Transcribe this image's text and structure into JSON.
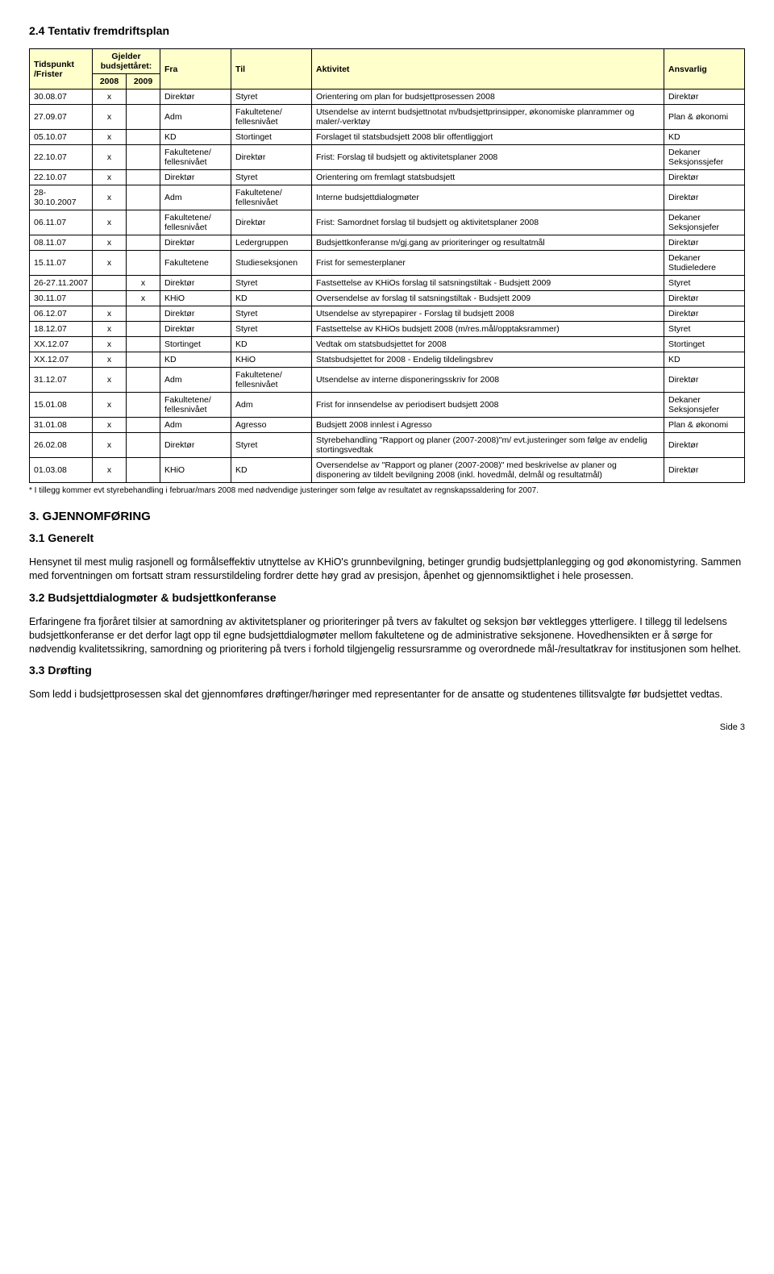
{
  "section24": {
    "title": "2.4 Tentativ fremdriftsplan",
    "headers": {
      "tidspunkt": "Tidspunkt /Frister",
      "gjelder": "Gjelder budsjettåret:",
      "y2008": "2008",
      "y2009": "2009",
      "fra": "Fra",
      "til": "Til",
      "aktivitet": "Aktivitet",
      "ansvarlig": "Ansvarlig"
    },
    "rows": [
      {
        "tid": "30.08.07",
        "y08": "x",
        "y09": "",
        "fra": "Direktør",
        "til": "Styret",
        "akt": "Orientering om plan for budsjettprosessen 2008",
        "ans": "Direktør"
      },
      {
        "tid": "27.09.07",
        "y08": "x",
        "y09": "",
        "fra": "Adm",
        "til": "Fakultetene/ fellesnivået",
        "akt": "Utsendelse av internt budsjettnotat m/budsjettprinsipper, økonomiske planrammer og maler/-verktøy",
        "ans": "Plan & økonomi"
      },
      {
        "tid": "05.10.07",
        "y08": "x",
        "y09": "",
        "fra": "KD",
        "til": "Stortinget",
        "akt": "Forslaget til statsbudsjett 2008 blir offentliggjort",
        "ans": "KD"
      },
      {
        "tid": "22.10.07",
        "y08": "x",
        "y09": "",
        "fra": "Fakultetene/ fellesnivået",
        "til": "Direktør",
        "akt": "Frist: Forslag til budsjett og aktivitetsplaner 2008",
        "ans": "Dekaner Seksjonssjefer"
      },
      {
        "tid": "22.10.07",
        "y08": "x",
        "y09": "",
        "fra": "Direktør",
        "til": "Styret",
        "akt": "Orientering om fremlagt statsbudsjett",
        "ans": "Direktør"
      },
      {
        "tid": "28-30.10.2007",
        "y08": "x",
        "y09": "",
        "fra": "Adm",
        "til": "Fakultetene/ fellesnivået",
        "akt": "Interne budsjettdialogmøter",
        "ans": "Direktør"
      },
      {
        "tid": "06.11.07",
        "y08": "x",
        "y09": "",
        "fra": "Fakultetene/ fellesnivået",
        "til": "Direktør",
        "akt": "Frist: Samordnet forslag til budsjett og aktivitetsplaner 2008",
        "ans": "Dekaner Seksjonsjefer"
      },
      {
        "tid": "08.11.07",
        "y08": "x",
        "y09": "",
        "fra": "Direktør",
        "til": "Ledergruppen",
        "akt": "Budsjettkonferanse m/gj.gang av prioriteringer og resultatmål",
        "ans": "Direktør"
      },
      {
        "tid": "15.11.07",
        "y08": "x",
        "y09": "",
        "fra": "Fakultetene",
        "til": "Studieseksjonen",
        "akt": "Frist for semesterplaner",
        "ans": "Dekaner Studieledere"
      },
      {
        "tid": "26-27.11.2007",
        "y08": "",
        "y09": "x",
        "fra": "Direktør",
        "til": "Styret",
        "akt": "Fastsettelse av KHiOs forslag til satsningstiltak - Budsjett 2009",
        "ans": "Styret"
      },
      {
        "tid": "30.11.07",
        "y08": "",
        "y09": "x",
        "fra": "KHiO",
        "til": "KD",
        "akt": "Oversendelse av forslag til satsningstiltak - Budsjett 2009",
        "ans": "Direktør"
      },
      {
        "tid": "06.12.07",
        "y08": "x",
        "y09": "",
        "fra": "Direktør",
        "til": "Styret",
        "akt": "Utsendelse av styrepapirer - Forslag til budsjett 2008",
        "ans": "Direktør"
      },
      {
        "tid": "18.12.07",
        "y08": "x",
        "y09": "",
        "fra": "Direktør",
        "til": "Styret",
        "akt": "Fastsettelse av KHiOs budsjett 2008 (m/res.mål/opptaksrammer)",
        "ans": "Styret"
      },
      {
        "tid": "XX.12.07",
        "y08": "x",
        "y09": "",
        "fra": "Stortinget",
        "til": "KD",
        "akt": "Vedtak om statsbudsjettet for 2008",
        "ans": "Stortinget"
      },
      {
        "tid": "XX.12.07",
        "y08": "x",
        "y09": "",
        "fra": "KD",
        "til": "KHiO",
        "akt": "Statsbudsjettet for 2008 - Endelig tildelingsbrev",
        "ans": "KD"
      },
      {
        "tid": "31.12.07",
        "y08": "x",
        "y09": "",
        "fra": "Adm",
        "til": "Fakultetene/ fellesnivået",
        "akt": "Utsendelse av interne disponeringsskriv for 2008",
        "ans": "Direktør"
      },
      {
        "tid": "15.01.08",
        "y08": "x",
        "y09": "",
        "fra": "Fakultetene/ fellesnivået",
        "til": "Adm",
        "akt": "Frist for innsendelse av periodisert budsjett 2008",
        "ans": "Dekaner Seksjonsjefer"
      },
      {
        "tid": "31.01.08",
        "y08": "x",
        "y09": "",
        "fra": "Adm",
        "til": "Agresso",
        "akt": "Budsjett 2008 innlest i Agresso",
        "ans": "Plan & økonomi"
      },
      {
        "tid": "26.02.08",
        "y08": "x",
        "y09": "",
        "fra": "Direktør",
        "til": "Styret",
        "akt": "Styrebehandling \"Rapport og planer (2007-2008)\"m/ evt.justeringer som følge av endelig stortingsvedtak",
        "ans": "Direktør"
      },
      {
        "tid": "01.03.08",
        "y08": "x",
        "y09": "",
        "fra": "KHiO",
        "til": "KD",
        "akt": "Oversendelse av \"Rapport og planer (2007-2008)\" med beskrivelse av planer og disponering av tildelt bevilgning 2008 (inkl. hovedmål, delmål og resultatmål)",
        "ans": "Direktør"
      }
    ],
    "footnote": "* I tillegg kommer evt styrebehandling i februar/mars 2008 med nødvendige justeringer som følge av resultatet av regnskapssaldering for 2007."
  },
  "section3": {
    "title": "3. GJENNOMFØRING",
    "s31_title": "3.1 Generelt",
    "s31_p": "Hensynet til mest mulig rasjonell og formålseffektiv utnyttelse av KHiO's grunnbevilgning, betinger grundig budsjettplanlegging og god økonomistyring. Sammen med forventningen om fortsatt stram ressurstildeling fordrer dette høy grad av presisjon, åpenhet og gjennomsiktlighet i hele prosessen.",
    "s32_title": "3.2 Budsjettdialogmøter & budsjettkonferanse",
    "s32_p": "Erfaringene fra fjoråret tilsier at samordning av aktivitetsplaner og prioriteringer på tvers av fakultet og seksjon bør vektlegges ytterligere. I tillegg til ledelsens budsjettkonferanse er det derfor lagt opp til egne budsjettdialogmøter mellom fakultetene og de administrative seksjonene. Hovedhensikten er å sørge for nødvendig kvalitetssikring, samordning og prioritering på tvers i forhold tilgjengelig ressursramme og overordnede mål-/resultatkrav for institusjonen som helhet.",
    "s33_title": "3.3 Drøfting",
    "s33_p": "Som ledd i budsjettprosessen skal det gjennomføres drøftinger/høringer med representanter for de ansatte og studentenes tillitsvalgte før budsjettet vedtas."
  },
  "page_num": "Side 3"
}
